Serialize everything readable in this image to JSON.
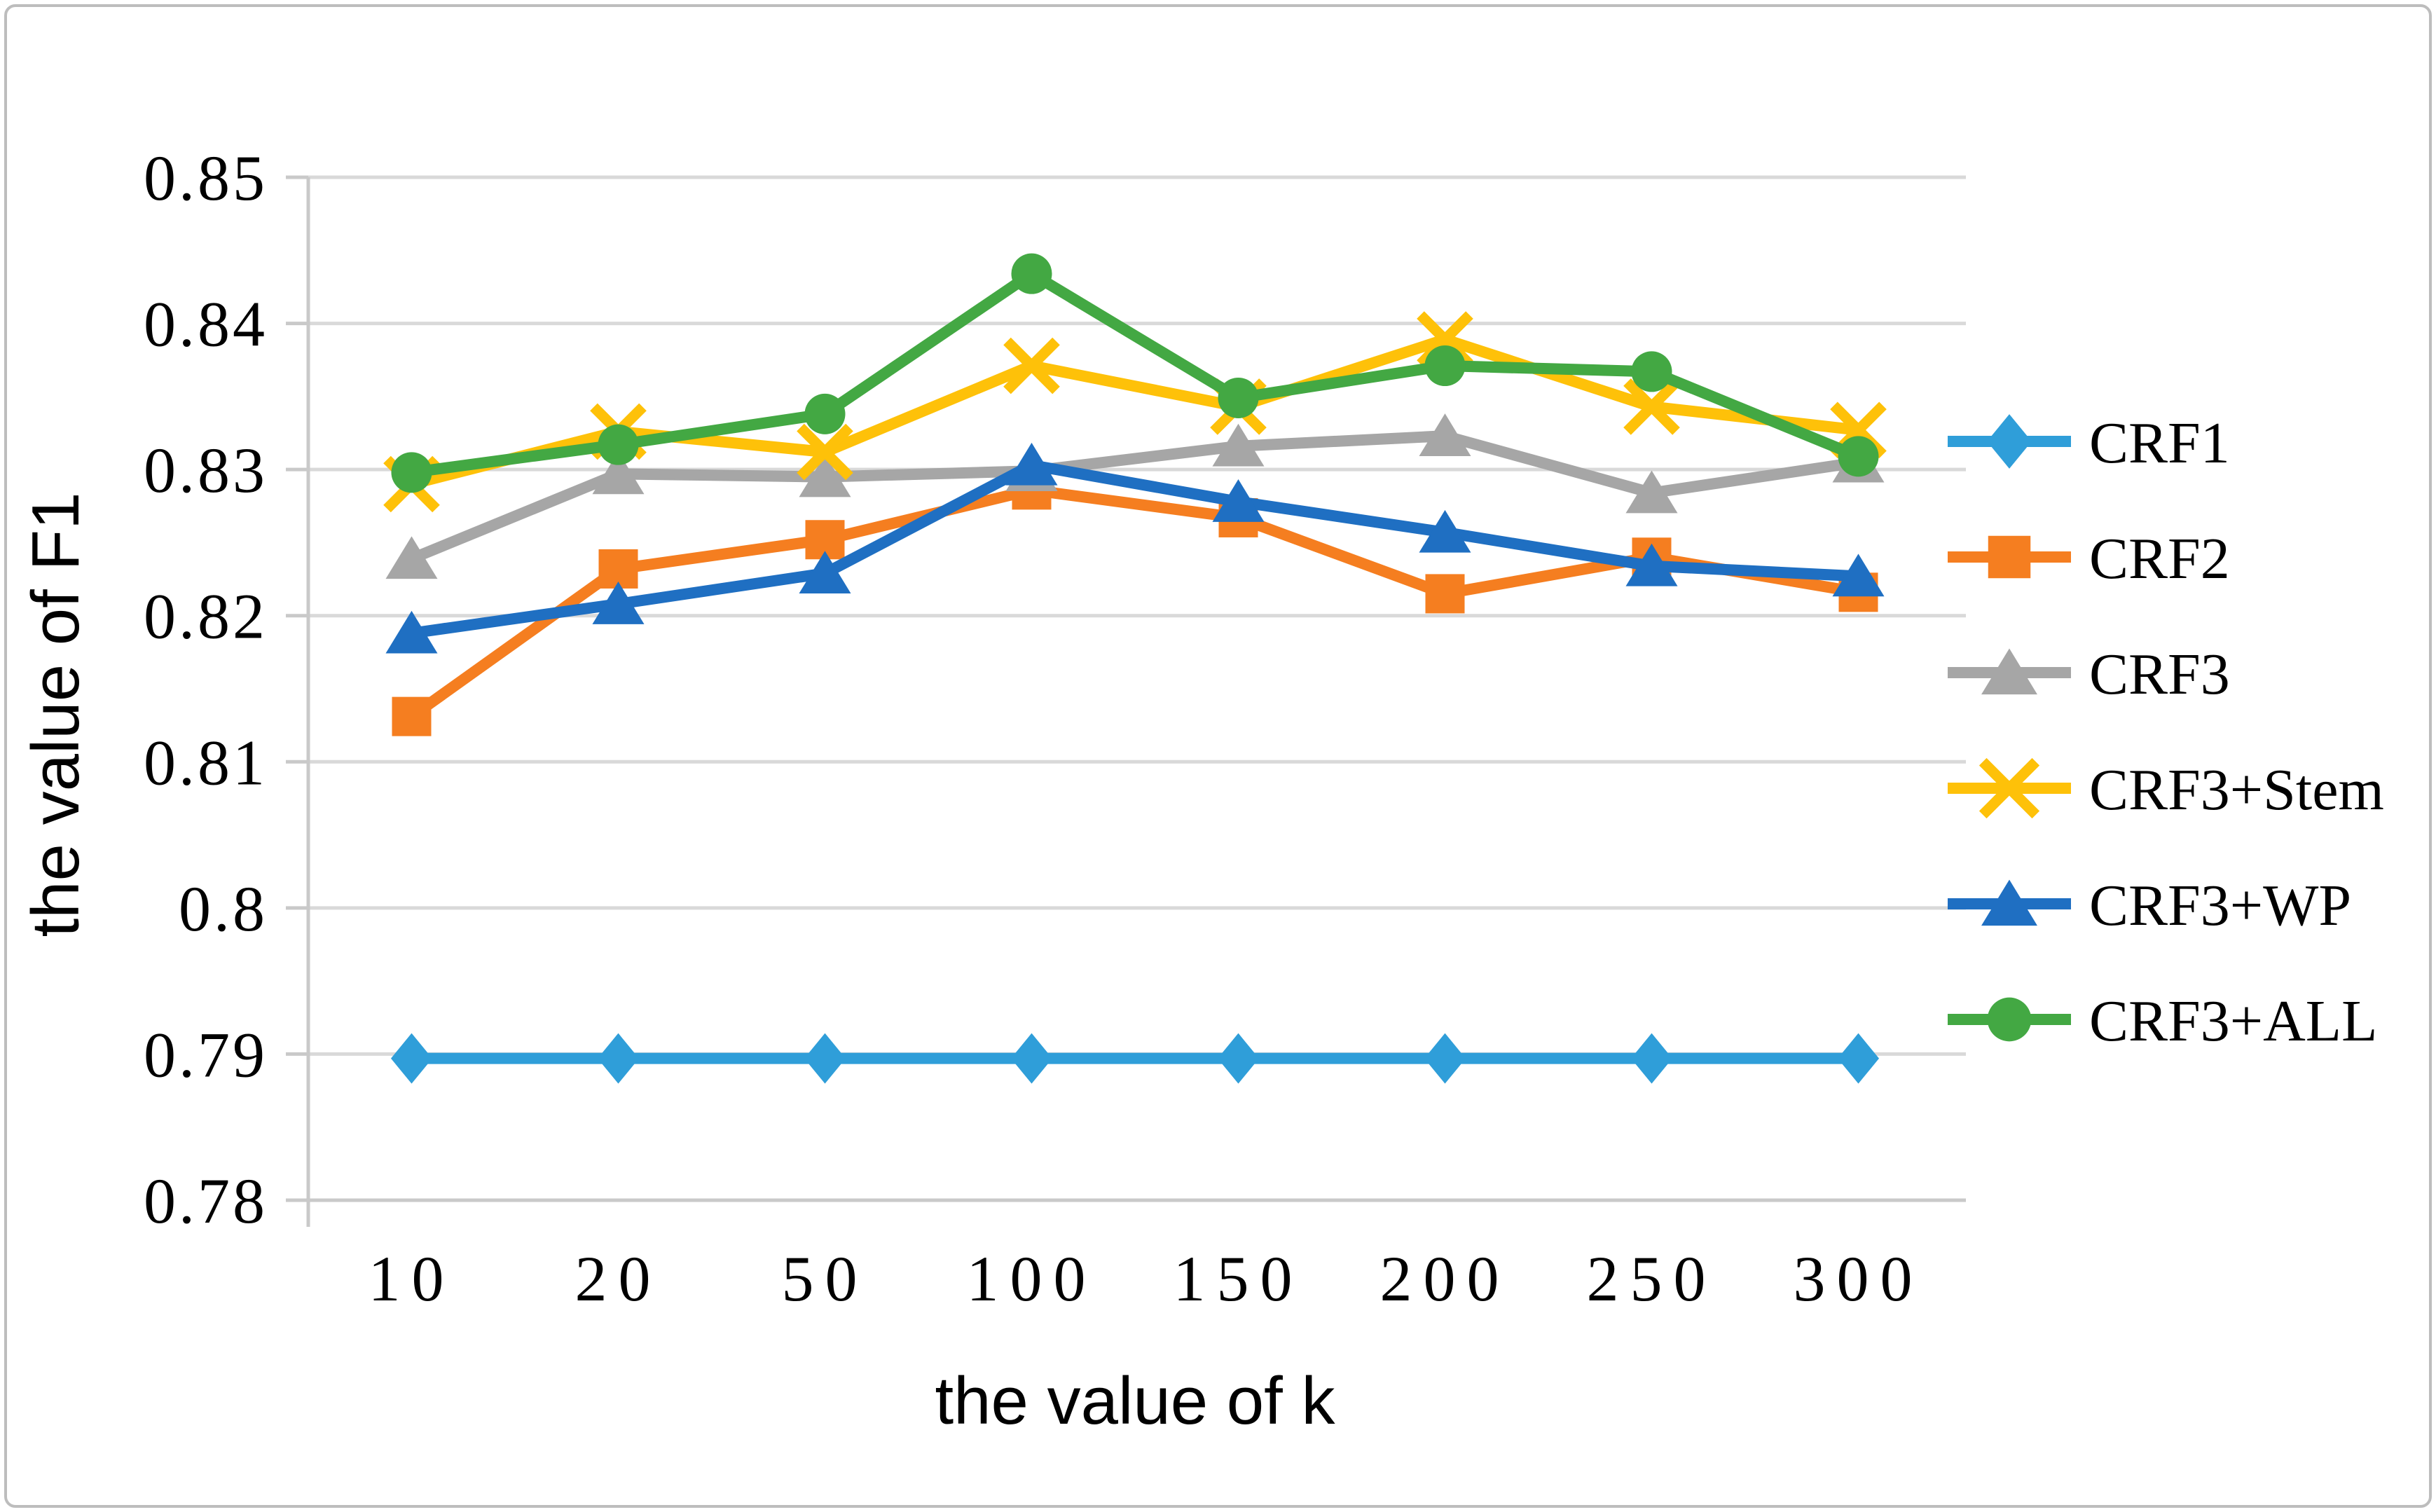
{
  "chart_data": {
    "type": "line",
    "title": "",
    "xlabel": "the value of k",
    "ylabel": "the value of F1",
    "categories": [
      "10",
      "20",
      "50",
      "100",
      "150",
      "200",
      "250",
      "300"
    ],
    "y_tick_labels": [
      "0.78",
      "0.79",
      "0.8",
      "0.81",
      "0.82",
      "0.83",
      "0.84",
      "0.85"
    ],
    "ylim": [
      0.78,
      0.85
    ],
    "grid": "horizontal",
    "legend_position": "right",
    "colors": {
      "gridline": "#D9D9D9",
      "axis": "#C9C9C9",
      "border": "#BDBDBD",
      "text": "#000000"
    },
    "series": [
      {
        "name": "CRF1",
        "color": "#2F9ED9",
        "marker": "diamond",
        "values": [
          0.7897,
          0.7897,
          0.7897,
          0.7897,
          0.7897,
          0.7897,
          0.7897,
          0.7897
        ]
      },
      {
        "name": "CRF2",
        "color": "#F57E20",
        "marker": "square",
        "values": [
          0.8131,
          0.8232,
          0.8252,
          0.8286,
          0.8267,
          0.8215,
          0.824,
          0.8216
        ]
      },
      {
        "name": "CRF3",
        "color": "#A6A6A6",
        "marker": "triangle",
        "values": [
          0.8239,
          0.8297,
          0.8295,
          0.8299,
          0.8316,
          0.8323,
          0.8284,
          0.8305
        ]
      },
      {
        "name": "CRF3+Stem",
        "color": "#FEC109",
        "marker": "x",
        "values": [
          0.829,
          0.8326,
          0.8312,
          0.8371,
          0.8343,
          0.8389,
          0.8343,
          0.8327
        ]
      },
      {
        "name": "CRF3+WP",
        "color": "#1F6FC2",
        "marker": "triangle",
        "values": [
          0.8188,
          0.8208,
          0.8229,
          0.8303,
          0.8278,
          0.8257,
          0.8234,
          0.8227
        ]
      },
      {
        "name": "CRF3+ALL",
        "color": "#43A843",
        "marker": "circle",
        "values": [
          0.8298,
          0.8317,
          0.8338,
          0.8434,
          0.8349,
          0.8371,
          0.8367,
          0.8309
        ]
      }
    ]
  }
}
